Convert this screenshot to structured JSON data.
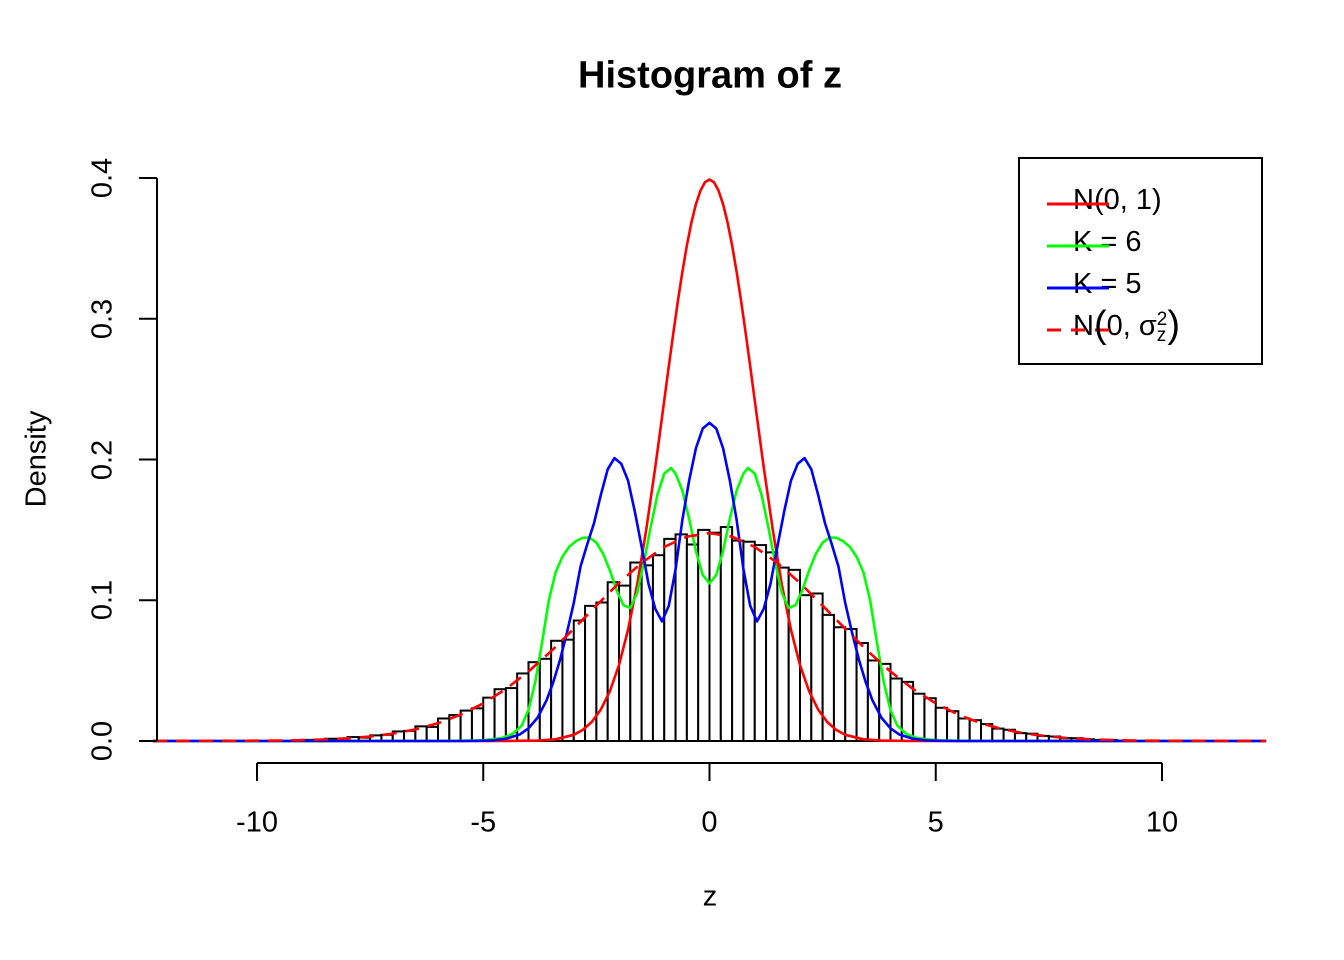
{
  "title": "Histogram of z",
  "axes": {
    "x": {
      "label": "z",
      "ticks": [
        "-10",
        "-5",
        "0",
        "5",
        "10"
      ],
      "tick_values": [
        -10,
        -5,
        0,
        5,
        10
      ]
    },
    "y": {
      "label": "Density",
      "ticks": [
        "0.0",
        "0.1",
        "0.2",
        "0.3",
        "0.4"
      ],
      "tick_values": [
        0,
        0.1,
        0.2,
        0.3,
        0.4
      ]
    }
  },
  "legend": {
    "items": [
      {
        "label": "N(0, 1)",
        "color": "#ff0000",
        "style": "solid"
      },
      {
        "label": "K = 6",
        "color": "#00ff00",
        "style": "solid"
      },
      {
        "label": "K = 5",
        "color": "#0000ff",
        "style": "solid"
      },
      {
        "label": "N(0, σz²)",
        "color": "#ff0000",
        "style": "dashed",
        "parts": {
          "pre": "N",
          "open": "(",
          "body": "0, σ",
          "sup": "2",
          "sub": "z",
          "close": ")"
        }
      }
    ]
  },
  "colors": {
    "normal01": "#ff0000",
    "k6": "#00ff00",
    "k5": "#0000ff",
    "normal_sigma": "#ff0000",
    "bar_fill": "#ffffff",
    "bar_stroke": "#000000",
    "axis": "#000000"
  },
  "chart_data": {
    "type": "histogram+line",
    "title": "Histogram of z",
    "xlabel": "z",
    "ylabel": "Density",
    "xlim": [
      -12.3,
      12.3
    ],
    "ylim": [
      0,
      0.4
    ],
    "x_tick_range": [
      -10,
      10
    ],
    "grid": false,
    "legend_position": "top-right",
    "histogram": {
      "bin_start": -9.25,
      "bin_width": 0.25,
      "heights": [
        0.0004,
        0.0008,
        0.0008,
        0.0016,
        0.0012,
        0.0028,
        0.0024,
        0.004,
        0.0044,
        0.0068,
        0.0072,
        0.0104,
        0.01,
        0.016,
        0.0184,
        0.0216,
        0.0232,
        0.0308,
        0.0368,
        0.0376,
        0.048,
        0.056,
        0.0584,
        0.0712,
        0.072,
        0.0856,
        0.096,
        0.0984,
        0.1128,
        0.1104,
        0.1268,
        0.1248,
        0.132,
        0.1436,
        0.1468,
        0.1396,
        0.15,
        0.148,
        0.152,
        0.1424,
        0.1416,
        0.1392,
        0.134,
        0.1232,
        0.1216,
        0.1036,
        0.1048,
        0.0896,
        0.0808,
        0.0796,
        0.0696,
        0.0572,
        0.0548,
        0.0444,
        0.042,
        0.0336,
        0.0304,
        0.0236,
        0.0212,
        0.016,
        0.0148,
        0.012,
        0.0088,
        0.008,
        0.0056,
        0.0052,
        0.0036,
        0.0032,
        0.002,
        0.002,
        0.0012,
        0.0008,
        0.0008,
        0.0004
      ]
    },
    "curves": [
      {
        "name": "N(0, 1)",
        "color": "#ff0000",
        "dash": false,
        "points": [
          [
            -12.3,
            0
          ],
          [
            -4.5,
            0
          ],
          [
            -3.8,
            0.0003
          ],
          [
            -3.4,
            0.0012
          ],
          [
            -3.0,
            0.0044
          ],
          [
            -2.8,
            0.0079
          ],
          [
            -2.6,
            0.0136
          ],
          [
            -2.4,
            0.0224
          ],
          [
            -2.2,
            0.0355
          ],
          [
            -2.0,
            0.054
          ],
          [
            -1.8,
            0.079
          ],
          [
            -1.6,
            0.1109
          ],
          [
            -1.4,
            0.1497
          ],
          [
            -1.2,
            0.1942
          ],
          [
            -1.1,
            0.2179
          ],
          [
            -1.0,
            0.242
          ],
          [
            -0.9,
            0.2661
          ],
          [
            -0.8,
            0.2897
          ],
          [
            -0.7,
            0.3123
          ],
          [
            -0.6,
            0.3332
          ],
          [
            -0.5,
            0.3521
          ],
          [
            -0.4,
            0.3683
          ],
          [
            -0.3,
            0.3814
          ],
          [
            -0.2,
            0.391
          ],
          [
            -0.1,
            0.397
          ],
          [
            0,
            0.3989
          ],
          [
            0.1,
            0.397
          ],
          [
            0.2,
            0.391
          ],
          [
            0.3,
            0.3814
          ],
          [
            0.4,
            0.3683
          ],
          [
            0.5,
            0.3521
          ],
          [
            0.6,
            0.3332
          ],
          [
            0.7,
            0.3123
          ],
          [
            0.8,
            0.2897
          ],
          [
            0.9,
            0.2661
          ],
          [
            1.0,
            0.242
          ],
          [
            1.1,
            0.2179
          ],
          [
            1.2,
            0.1942
          ],
          [
            1.4,
            0.1497
          ],
          [
            1.6,
            0.1109
          ],
          [
            1.8,
            0.079
          ],
          [
            2.0,
            0.054
          ],
          [
            2.2,
            0.0355
          ],
          [
            2.4,
            0.0224
          ],
          [
            2.6,
            0.0136
          ],
          [
            2.8,
            0.0079
          ],
          [
            3.0,
            0.0044
          ],
          [
            3.4,
            0.0012
          ],
          [
            3.8,
            0.0003
          ],
          [
            4.5,
            0
          ],
          [
            12.3,
            0
          ]
        ]
      },
      {
        "name": "K = 6",
        "color": "#00ff00",
        "dash": false,
        "points": [
          [
            -12.3,
            0
          ],
          [
            -6.0,
            0
          ],
          [
            -5.5,
            0.0001
          ],
          [
            -5.0,
            0.0005
          ],
          [
            -4.6,
            0.002
          ],
          [
            -4.35,
            0.005
          ],
          [
            -4.15,
            0.011
          ],
          [
            -4.0,
            0.022
          ],
          [
            -3.85,
            0.042
          ],
          [
            -3.7,
            0.07
          ],
          [
            -3.55,
            0.1
          ],
          [
            -3.4,
            0.12
          ],
          [
            -3.25,
            0.131
          ],
          [
            -3.1,
            0.138
          ],
          [
            -2.95,
            0.142
          ],
          [
            -2.8,
            0.1445
          ],
          [
            -2.65,
            0.1445
          ],
          [
            -2.5,
            0.141
          ],
          [
            -2.35,
            0.133
          ],
          [
            -2.2,
            0.121
          ],
          [
            -2.05,
            0.107
          ],
          [
            -1.9,
            0.0965
          ],
          [
            -1.75,
            0.0945
          ],
          [
            -1.6,
            0.105
          ],
          [
            -1.45,
            0.127
          ],
          [
            -1.3,
            0.152
          ],
          [
            -1.15,
            0.175
          ],
          [
            -1.0,
            0.19
          ],
          [
            -0.85,
            0.194
          ],
          [
            -0.75,
            0.19
          ],
          [
            -0.6,
            0.178
          ],
          [
            -0.45,
            0.158
          ],
          [
            -0.3,
            0.135
          ],
          [
            -0.15,
            0.118
          ],
          [
            0,
            0.112
          ],
          [
            0.15,
            0.118
          ],
          [
            0.3,
            0.135
          ],
          [
            0.45,
            0.158
          ],
          [
            0.6,
            0.178
          ],
          [
            0.75,
            0.19
          ],
          [
            0.85,
            0.194
          ],
          [
            1.0,
            0.19
          ],
          [
            1.15,
            0.175
          ],
          [
            1.3,
            0.152
          ],
          [
            1.45,
            0.127
          ],
          [
            1.6,
            0.105
          ],
          [
            1.75,
            0.0945
          ],
          [
            1.9,
            0.0965
          ],
          [
            2.05,
            0.107
          ],
          [
            2.2,
            0.121
          ],
          [
            2.35,
            0.133
          ],
          [
            2.5,
            0.141
          ],
          [
            2.65,
            0.1445
          ],
          [
            2.8,
            0.1445
          ],
          [
            2.95,
            0.142
          ],
          [
            3.1,
            0.138
          ],
          [
            3.25,
            0.131
          ],
          [
            3.4,
            0.12
          ],
          [
            3.55,
            0.1
          ],
          [
            3.7,
            0.07
          ],
          [
            3.85,
            0.042
          ],
          [
            4.0,
            0.022
          ],
          [
            4.15,
            0.011
          ],
          [
            4.35,
            0.005
          ],
          [
            4.6,
            0.002
          ],
          [
            5.0,
            0.0005
          ],
          [
            5.5,
            0.0001
          ],
          [
            6.0,
            0
          ],
          [
            12.3,
            0
          ]
        ]
      },
      {
        "name": "K = 5",
        "color": "#0000ff",
        "dash": false,
        "points": [
          [
            -12.3,
            0
          ],
          [
            -5.5,
            0
          ],
          [
            -5.1,
            0.0001
          ],
          [
            -4.8,
            0.0004
          ],
          [
            -4.5,
            0.0016
          ],
          [
            -4.2,
            0.0045
          ],
          [
            -4.0,
            0.009
          ],
          [
            -3.8,
            0.0165
          ],
          [
            -3.6,
            0.029
          ],
          [
            -3.45,
            0.042
          ],
          [
            -3.3,
            0.058
          ],
          [
            -3.15,
            0.077
          ],
          [
            -3.0,
            0.098
          ],
          [
            -2.85,
            0.124
          ],
          [
            -2.7,
            0.14
          ],
          [
            -2.55,
            0.155
          ],
          [
            -2.4,
            0.175
          ],
          [
            -2.25,
            0.193
          ],
          [
            -2.1,
            0.201
          ],
          [
            -1.95,
            0.197
          ],
          [
            -1.8,
            0.185
          ],
          [
            -1.65,
            0.163
          ],
          [
            -1.5,
            0.138
          ],
          [
            -1.35,
            0.112
          ],
          [
            -1.2,
            0.094
          ],
          [
            -1.05,
            0.085
          ],
          [
            -0.9,
            0.096
          ],
          [
            -0.75,
            0.122
          ],
          [
            -0.6,
            0.157
          ],
          [
            -0.45,
            0.185
          ],
          [
            -0.3,
            0.208
          ],
          [
            -0.15,
            0.222
          ],
          [
            0,
            0.226
          ],
          [
            0.15,
            0.222
          ],
          [
            0.3,
            0.208
          ],
          [
            0.45,
            0.185
          ],
          [
            0.6,
            0.157
          ],
          [
            0.75,
            0.122
          ],
          [
            0.9,
            0.096
          ],
          [
            1.05,
            0.085
          ],
          [
            1.2,
            0.094
          ],
          [
            1.35,
            0.112
          ],
          [
            1.5,
            0.138
          ],
          [
            1.65,
            0.163
          ],
          [
            1.8,
            0.185
          ],
          [
            1.95,
            0.197
          ],
          [
            2.1,
            0.201
          ],
          [
            2.25,
            0.193
          ],
          [
            2.4,
            0.175
          ],
          [
            2.55,
            0.155
          ],
          [
            2.7,
            0.14
          ],
          [
            2.85,
            0.124
          ],
          [
            3.0,
            0.098
          ],
          [
            3.15,
            0.077
          ],
          [
            3.3,
            0.058
          ],
          [
            3.45,
            0.042
          ],
          [
            3.6,
            0.029
          ],
          [
            3.8,
            0.0165
          ],
          [
            4.0,
            0.009
          ],
          [
            4.2,
            0.0045
          ],
          [
            4.5,
            0.0016
          ],
          [
            4.8,
            0.0004
          ],
          [
            5.1,
            0.0001
          ],
          [
            5.5,
            0
          ],
          [
            12.3,
            0
          ]
        ]
      },
      {
        "name": "N(0, σz²)",
        "color": "#ff0000",
        "dash": true,
        "points": [
          [
            -12.3,
            0
          ],
          [
            -11,
            0.0001
          ],
          [
            -10,
            0.0002
          ],
          [
            -9.5,
            0.0003
          ],
          [
            -9,
            0.0006
          ],
          [
            -8.5,
            0.0011
          ],
          [
            -8,
            0.0019
          ],
          [
            -7.5,
            0.0032
          ],
          [
            -7,
            0.0052
          ],
          [
            -6.5,
            0.0082
          ],
          [
            -6,
            0.0126
          ],
          [
            -5.5,
            0.0187
          ],
          [
            -5,
            0.0267
          ],
          [
            -4.5,
            0.0369
          ],
          [
            -4,
            0.0494
          ],
          [
            -3.5,
            0.0638
          ],
          [
            -3,
            0.0797
          ],
          [
            -2.5,
            0.0962
          ],
          [
            -2,
            0.1123
          ],
          [
            -1.5,
            0.1266
          ],
          [
            -1,
            0.1379
          ],
          [
            -0.5,
            0.1452
          ],
          [
            0,
            0.1477
          ],
          [
            0.5,
            0.1452
          ],
          [
            1,
            0.1379
          ],
          [
            1.5,
            0.1266
          ],
          [
            2,
            0.1123
          ],
          [
            2.5,
            0.0962
          ],
          [
            3,
            0.0797
          ],
          [
            3.5,
            0.0638
          ],
          [
            4,
            0.0494
          ],
          [
            4.5,
            0.0369
          ],
          [
            5,
            0.0267
          ],
          [
            5.5,
            0.0187
          ],
          [
            6,
            0.0126
          ],
          [
            6.5,
            0.0082
          ],
          [
            7,
            0.0052
          ],
          [
            7.5,
            0.0032
          ],
          [
            8,
            0.0019
          ],
          [
            8.5,
            0.0011
          ],
          [
            9,
            0.0006
          ],
          [
            9.5,
            0.0003
          ],
          [
            10,
            0.0002
          ],
          [
            11,
            0.0001
          ],
          [
            12.3,
            0
          ]
        ]
      }
    ]
  }
}
